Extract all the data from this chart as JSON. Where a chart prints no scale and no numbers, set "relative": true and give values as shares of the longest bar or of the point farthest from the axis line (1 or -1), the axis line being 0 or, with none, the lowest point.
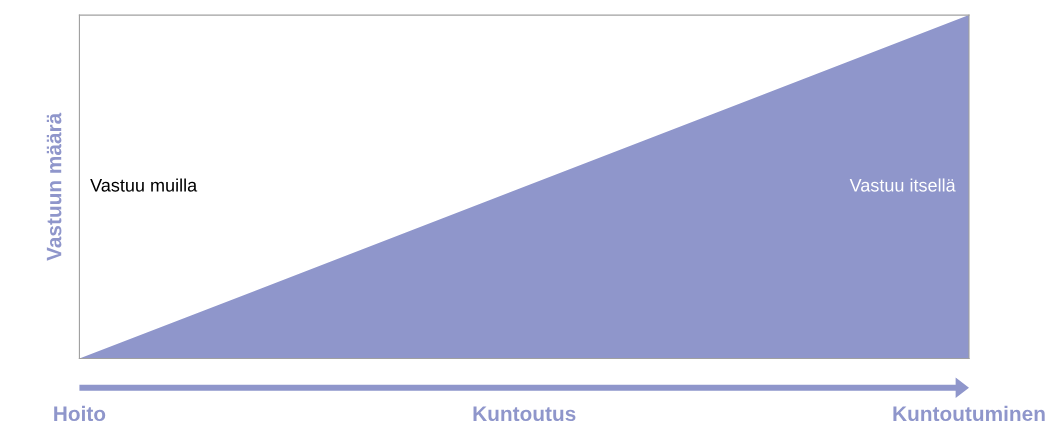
{
  "chart_data": {
    "type": "area",
    "relative": true,
    "categories": [
      "Hoito",
      "Kuntoutus",
      "Kuntoutuminen"
    ],
    "series": [
      {
        "color": "#8f96cb",
        "values": [
          0,
          0.5,
          1
        ]
      }
    ],
    "ylabel": "Vastuun määrä",
    "annotations": [
      "Vastuu muilla",
      "Vastuu itsellä"
    ],
    "grid": false,
    "legend": false
  }
}
